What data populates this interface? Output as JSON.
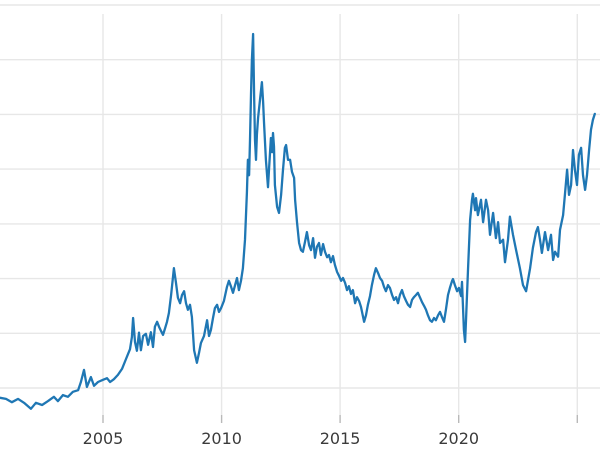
{
  "figure": {
    "background_color": "#ffffff",
    "title": "",
    "notes": "cropped plot area; y-axis tick labels not visible in frame"
  },
  "chart_data": {
    "type": "line",
    "title": "",
    "xlabel": "",
    "ylabel": "",
    "legend": false,
    "grid": true,
    "grid_color": "#e7e7e7",
    "tick_mark_color": "#b9b9b9",
    "tick_label_color": "#3b3b3b",
    "line_color": "#1f77b4",
    "line_width": 2.3,
    "x_tick_labels": [
      "2005",
      "2010",
      "2015",
      "2020"
    ],
    "x_tick_years": [
      2005,
      2010,
      2015,
      2020
    ],
    "x_gridline_years": [
      2005,
      2010,
      2015,
      2020,
      2025
    ],
    "x_range_years": [
      2000.66,
      2025.9
    ],
    "y_axis_labels_visible": false,
    "y_unit": "gridline units (y tick labels cropped out of frame; horizontal gridlines spaced 1 unit apart, lowest visible gridline = 0)",
    "y_gridline_values": [
      0,
      1,
      2,
      3,
      4,
      5,
      6,
      7
    ],
    "series": [
      {
        "name": "series-1",
        "points": [
          [
            2000.66,
            -0.18
          ],
          [
            2000.91,
            -0.2
          ],
          [
            2001.16,
            -0.26
          ],
          [
            2001.42,
            -0.2
          ],
          [
            2001.67,
            -0.27
          ],
          [
            2001.96,
            -0.38
          ],
          [
            2002.17,
            -0.27
          ],
          [
            2002.43,
            -0.31
          ],
          [
            2002.68,
            -0.24
          ],
          [
            2002.93,
            -0.16
          ],
          [
            2003.1,
            -0.24
          ],
          [
            2003.31,
            -0.13
          ],
          [
            2003.52,
            -0.16
          ],
          [
            2003.73,
            -0.07
          ],
          [
            2003.95,
            -0.04
          ],
          [
            2004.07,
            0.11
          ],
          [
            2004.2,
            0.33
          ],
          [
            2004.32,
            0.02
          ],
          [
            2004.49,
            0.2
          ],
          [
            2004.62,
            0.04
          ],
          [
            2004.79,
            0.11
          ],
          [
            2005.0,
            0.15
          ],
          [
            2005.17,
            0.18
          ],
          [
            2005.3,
            0.11
          ],
          [
            2005.46,
            0.16
          ],
          [
            2005.63,
            0.24
          ],
          [
            2005.8,
            0.35
          ],
          [
            2005.97,
            0.53
          ],
          [
            2006.14,
            0.71
          ],
          [
            2006.22,
            0.93
          ],
          [
            2006.27,
            1.28
          ],
          [
            2006.35,
            0.84
          ],
          [
            2006.43,
            0.68
          ],
          [
            2006.52,
            1.01
          ],
          [
            2006.6,
            0.69
          ],
          [
            2006.69,
            0.95
          ],
          [
            2006.81,
            0.99
          ],
          [
            2006.9,
            0.79
          ],
          [
            2007.02,
            1.02
          ],
          [
            2007.11,
            0.75
          ],
          [
            2007.19,
            1.12
          ],
          [
            2007.28,
            1.21
          ],
          [
            2007.36,
            1.12
          ],
          [
            2007.45,
            1.04
          ],
          [
            2007.53,
            0.97
          ],
          [
            2007.61,
            1.08
          ],
          [
            2007.7,
            1.21
          ],
          [
            2007.78,
            1.37
          ],
          [
            2007.87,
            1.7
          ],
          [
            2007.95,
            2.03
          ],
          [
            2007.99,
            2.19
          ],
          [
            2008.08,
            1.92
          ],
          [
            2008.16,
            1.65
          ],
          [
            2008.25,
            1.55
          ],
          [
            2008.33,
            1.7
          ],
          [
            2008.42,
            1.77
          ],
          [
            2008.5,
            1.55
          ],
          [
            2008.58,
            1.43
          ],
          [
            2008.67,
            1.52
          ],
          [
            2008.75,
            1.3
          ],
          [
            2008.84,
            0.69
          ],
          [
            2008.96,
            0.46
          ],
          [
            2009.05,
            0.64
          ],
          [
            2009.13,
            0.82
          ],
          [
            2009.26,
            0.95
          ],
          [
            2009.39,
            1.24
          ],
          [
            2009.47,
            0.95
          ],
          [
            2009.55,
            1.06
          ],
          [
            2009.64,
            1.28
          ],
          [
            2009.72,
            1.46
          ],
          [
            2009.81,
            1.52
          ],
          [
            2009.89,
            1.39
          ],
          [
            2009.98,
            1.46
          ],
          [
            2010.1,
            1.59
          ],
          [
            2010.23,
            1.85
          ],
          [
            2010.31,
            1.96
          ],
          [
            2010.4,
            1.85
          ],
          [
            2010.48,
            1.74
          ],
          [
            2010.57,
            1.88
          ],
          [
            2010.65,
            2.01
          ],
          [
            2010.73,
            1.79
          ],
          [
            2010.82,
            1.96
          ],
          [
            2010.9,
            2.19
          ],
          [
            2010.99,
            2.71
          ],
          [
            2011.07,
            3.57
          ],
          [
            2011.11,
            4.17
          ],
          [
            2011.16,
            3.89
          ],
          [
            2011.2,
            4.53
          ],
          [
            2011.24,
            5.36
          ],
          [
            2011.28,
            6.0
          ],
          [
            2011.33,
            6.47
          ],
          [
            2011.37,
            5.36
          ],
          [
            2011.41,
            4.53
          ],
          [
            2011.45,
            4.17
          ],
          [
            2011.49,
            4.63
          ],
          [
            2011.54,
            4.94
          ],
          [
            2011.62,
            5.27
          ],
          [
            2011.7,
            5.59
          ],
          [
            2011.75,
            5.23
          ],
          [
            2011.79,
            4.86
          ],
          [
            2011.87,
            4.17
          ],
          [
            2011.96,
            3.67
          ],
          [
            2012.0,
            3.99
          ],
          [
            2012.08,
            4.57
          ],
          [
            2012.13,
            4.31
          ],
          [
            2012.17,
            4.66
          ],
          [
            2012.21,
            4.41
          ],
          [
            2012.25,
            3.71
          ],
          [
            2012.34,
            3.31
          ],
          [
            2012.42,
            3.2
          ],
          [
            2012.51,
            3.53
          ],
          [
            2012.59,
            3.99
          ],
          [
            2012.67,
            4.39
          ],
          [
            2012.72,
            4.44
          ],
          [
            2012.8,
            4.17
          ],
          [
            2012.89,
            4.17
          ],
          [
            2012.97,
            3.95
          ],
          [
            2013.06,
            3.84
          ],
          [
            2013.1,
            3.44
          ],
          [
            2013.18,
            3.03
          ],
          [
            2013.27,
            2.65
          ],
          [
            2013.35,
            2.52
          ],
          [
            2013.43,
            2.49
          ],
          [
            2013.52,
            2.67
          ],
          [
            2013.6,
            2.85
          ],
          [
            2013.69,
            2.61
          ],
          [
            2013.77,
            2.52
          ],
          [
            2013.86,
            2.74
          ],
          [
            2013.94,
            2.38
          ],
          [
            2014.02,
            2.58
          ],
          [
            2014.11,
            2.65
          ],
          [
            2014.19,
            2.43
          ],
          [
            2014.28,
            2.63
          ],
          [
            2014.36,
            2.49
          ],
          [
            2014.45,
            2.39
          ],
          [
            2014.53,
            2.43
          ],
          [
            2014.61,
            2.3
          ],
          [
            2014.7,
            2.41
          ],
          [
            2014.78,
            2.25
          ],
          [
            2014.87,
            2.12
          ],
          [
            2014.95,
            2.05
          ],
          [
            2015.04,
            1.96
          ],
          [
            2015.12,
            2.01
          ],
          [
            2015.21,
            1.92
          ],
          [
            2015.29,
            1.79
          ],
          [
            2015.37,
            1.86
          ],
          [
            2015.46,
            1.72
          ],
          [
            2015.54,
            1.79
          ],
          [
            2015.63,
            1.55
          ],
          [
            2015.71,
            1.66
          ],
          [
            2015.8,
            1.59
          ],
          [
            2015.88,
            1.48
          ],
          [
            2016.01,
            1.21
          ],
          [
            2016.09,
            1.33
          ],
          [
            2016.17,
            1.52
          ],
          [
            2016.26,
            1.68
          ],
          [
            2016.34,
            1.88
          ],
          [
            2016.43,
            2.07
          ],
          [
            2016.51,
            2.19
          ],
          [
            2016.6,
            2.1
          ],
          [
            2016.68,
            2.01
          ],
          [
            2016.77,
            1.96
          ],
          [
            2016.85,
            1.85
          ],
          [
            2016.93,
            1.77
          ],
          [
            2017.02,
            1.88
          ],
          [
            2017.1,
            1.83
          ],
          [
            2017.19,
            1.7
          ],
          [
            2017.27,
            1.61
          ],
          [
            2017.36,
            1.66
          ],
          [
            2017.44,
            1.55
          ],
          [
            2017.52,
            1.7
          ],
          [
            2017.61,
            1.79
          ],
          [
            2017.69,
            1.68
          ],
          [
            2017.78,
            1.59
          ],
          [
            2017.86,
            1.52
          ],
          [
            2017.95,
            1.48
          ],
          [
            2018.03,
            1.61
          ],
          [
            2018.11,
            1.66
          ],
          [
            2018.2,
            1.7
          ],
          [
            2018.28,
            1.74
          ],
          [
            2018.37,
            1.65
          ],
          [
            2018.45,
            1.57
          ],
          [
            2018.54,
            1.5
          ],
          [
            2018.62,
            1.43
          ],
          [
            2018.7,
            1.33
          ],
          [
            2018.79,
            1.24
          ],
          [
            2018.87,
            1.21
          ],
          [
            2018.96,
            1.28
          ],
          [
            2019.04,
            1.24
          ],
          [
            2019.13,
            1.33
          ],
          [
            2019.21,
            1.39
          ],
          [
            2019.29,
            1.3
          ],
          [
            2019.38,
            1.21
          ],
          [
            2019.46,
            1.43
          ],
          [
            2019.55,
            1.7
          ],
          [
            2019.63,
            1.83
          ],
          [
            2019.72,
            1.96
          ],
          [
            2019.76,
            1.99
          ],
          [
            2019.84,
            1.88
          ],
          [
            2019.93,
            1.77
          ],
          [
            2020.01,
            1.83
          ],
          [
            2020.1,
            1.68
          ],
          [
            2020.14,
            1.94
          ],
          [
            2020.22,
            1.06
          ],
          [
            2020.27,
            0.84
          ],
          [
            2020.31,
            1.28
          ],
          [
            2020.39,
            2.16
          ],
          [
            2020.48,
            3.07
          ],
          [
            2020.56,
            3.44
          ],
          [
            2020.6,
            3.55
          ],
          [
            2020.69,
            3.25
          ],
          [
            2020.73,
            3.47
          ],
          [
            2020.81,
            3.16
          ],
          [
            2020.94,
            3.44
          ],
          [
            2021.03,
            3.03
          ],
          [
            2021.15,
            3.44
          ],
          [
            2021.24,
            3.25
          ],
          [
            2021.32,
            2.8
          ],
          [
            2021.45,
            3.2
          ],
          [
            2021.57,
            2.74
          ],
          [
            2021.66,
            3.03
          ],
          [
            2021.74,
            2.65
          ],
          [
            2021.87,
            2.71
          ],
          [
            2021.95,
            2.3
          ],
          [
            2022.08,
            2.71
          ],
          [
            2022.16,
            3.13
          ],
          [
            2022.29,
            2.8
          ],
          [
            2022.42,
            2.52
          ],
          [
            2022.58,
            2.19
          ],
          [
            2022.71,
            1.88
          ],
          [
            2022.84,
            1.77
          ],
          [
            2022.92,
            1.97
          ],
          [
            2023.01,
            2.19
          ],
          [
            2023.13,
            2.56
          ],
          [
            2023.26,
            2.85
          ],
          [
            2023.34,
            2.94
          ],
          [
            2023.43,
            2.71
          ],
          [
            2023.51,
            2.47
          ],
          [
            2023.64,
            2.85
          ],
          [
            2023.77,
            2.52
          ],
          [
            2023.89,
            2.8
          ],
          [
            2023.98,
            2.34
          ],
          [
            2024.06,
            2.49
          ],
          [
            2024.19,
            2.4
          ],
          [
            2024.27,
            2.89
          ],
          [
            2024.4,
            3.16
          ],
          [
            2024.48,
            3.53
          ],
          [
            2024.57,
            3.99
          ],
          [
            2024.65,
            3.53
          ],
          [
            2024.74,
            3.71
          ],
          [
            2024.82,
            4.35
          ],
          [
            2024.9,
            3.99
          ],
          [
            2024.99,
            3.71
          ],
          [
            2025.07,
            4.26
          ],
          [
            2025.16,
            4.39
          ],
          [
            2025.24,
            3.89
          ],
          [
            2025.33,
            3.62
          ],
          [
            2025.41,
            3.89
          ],
          [
            2025.5,
            4.35
          ],
          [
            2025.58,
            4.72
          ],
          [
            2025.66,
            4.9
          ],
          [
            2025.74,
            5.01
          ]
        ]
      }
    ]
  }
}
